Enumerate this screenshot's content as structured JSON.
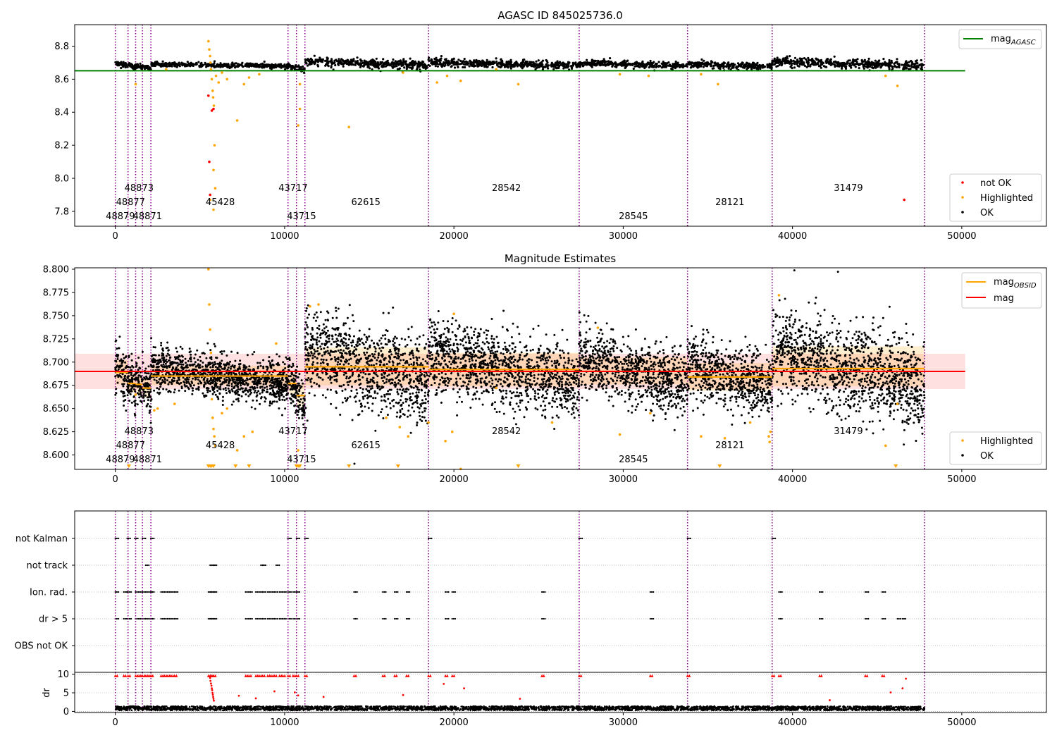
{
  "chart_data": [
    {
      "type": "scatter",
      "title": "AGASC ID 845025736.0",
      "xlim": [
        -2400,
        55000
      ],
      "ylim": [
        7.71,
        8.93
      ],
      "x_ticks": [
        0,
        10000,
        20000,
        30000,
        40000,
        50000
      ],
      "y_ticks": [
        7.8,
        8.0,
        8.2,
        8.4,
        8.6,
        8.8
      ],
      "x_tick_labels": [
        "0",
        "10000",
        "20000",
        "30000",
        "40000",
        "50000"
      ],
      "y_tick_labels": [
        "7.8",
        "8.0",
        "8.2",
        "8.4",
        "8.6",
        "8.8"
      ],
      "reference_line": {
        "name": "mag_AGASC",
        "label_main": "mag",
        "label_sub": "AGASC",
        "value": 8.651,
        "color": "#008000",
        "x_range": [
          -2400,
          50200
        ]
      },
      "legend_lines": [
        {
          "label_main": "mag",
          "label_sub": "AGASC",
          "color": "#008000"
        }
      ],
      "legend_points": [
        {
          "label": "not OK",
          "color": "#ff0000"
        },
        {
          "label": "Highlighted",
          "color": "#ffa500"
        },
        {
          "label": "OK",
          "color": "#000000"
        }
      ],
      "outliers": {
        "red": [
          [
            5500,
            8.5
          ],
          [
            5550,
            8.1
          ],
          [
            5600,
            7.9
          ],
          [
            5700,
            8.41
          ],
          [
            5800,
            8.42
          ],
          [
            46600,
            7.87
          ]
        ],
        "orange": [
          [
            5500,
            8.83
          ],
          [
            5550,
            8.78
          ],
          [
            5600,
            8.74
          ],
          [
            5620,
            8.7
          ],
          [
            5650,
            8.66
          ],
          [
            5700,
            8.6
          ],
          [
            5750,
            8.53
          ],
          [
            5780,
            8.49
          ],
          [
            5820,
            8.44
          ],
          [
            5860,
            8.2
          ],
          [
            5800,
            8.05
          ],
          [
            5900,
            7.94
          ],
          [
            5600,
            7.87
          ],
          [
            5800,
            7.81
          ],
          [
            5950,
            8.62
          ],
          [
            6100,
            8.58
          ],
          [
            6300,
            8.64
          ],
          [
            6600,
            8.6
          ],
          [
            7200,
            8.35
          ],
          [
            7600,
            8.57
          ],
          [
            7900,
            8.61
          ],
          [
            10800,
            8.32
          ],
          [
            10900,
            8.42
          ],
          [
            10900,
            8.57
          ],
          [
            13800,
            8.31
          ],
          [
            17000,
            8.64
          ],
          [
            19000,
            8.58
          ],
          [
            19600,
            8.62
          ],
          [
            20400,
            8.59
          ],
          [
            23800,
            8.57
          ],
          [
            22500,
            8.66
          ],
          [
            29800,
            8.63
          ],
          [
            31500,
            8.62
          ],
          [
            34600,
            8.63
          ],
          [
            35600,
            8.57
          ],
          [
            45500,
            8.62
          ],
          [
            46200,
            8.56
          ],
          [
            1200,
            8.57
          ],
          [
            3000,
            8.66
          ],
          [
            8500,
            8.63
          ]
        ]
      }
    },
    {
      "type": "scatter",
      "title": "Magnitude Estimates",
      "xlim": [
        -2400,
        55000
      ],
      "ylim": [
        8.5845,
        8.8015
      ],
      "x_ticks": [
        0,
        10000,
        20000,
        30000,
        40000,
        50000
      ],
      "y_ticks": [
        8.6,
        8.625,
        8.65,
        8.675,
        8.7,
        8.725,
        8.75,
        8.775,
        8.8
      ],
      "x_tick_labels": [
        "0",
        "10000",
        "20000",
        "30000",
        "40000",
        "50000"
      ],
      "y_tick_labels": [
        "8.600",
        "8.625",
        "8.650",
        "8.675",
        "8.700",
        "8.725",
        "8.750",
        "8.775",
        "8.800"
      ],
      "mag": {
        "name": "mag",
        "value": 8.69,
        "band": [
          8.671,
          8.709
        ],
        "x_range": [
          -2400,
          50200
        ],
        "color": "#ff0000"
      },
      "mag_obsid_segments": [
        {
          "x0": 0,
          "x1": 750,
          "y": 8.689,
          "lo": 8.676,
          "hi": 8.702
        },
        {
          "x0": 750,
          "x1": 1200,
          "y": 8.677,
          "lo": 8.667,
          "hi": 8.688
        },
        {
          "x0": 1200,
          "x1": 1600,
          "y": 8.676,
          "lo": 8.666,
          "hi": 8.686
        },
        {
          "x0": 1600,
          "x1": 2100,
          "y": 8.672,
          "lo": 8.662,
          "hi": 8.682
        },
        {
          "x0": 2100,
          "x1": 10200,
          "y": 8.685,
          "lo": 8.675,
          "hi": 8.696
        },
        {
          "x0": 10200,
          "x1": 10700,
          "y": 8.677,
          "lo": 8.666,
          "hi": 8.688
        },
        {
          "x0": 10700,
          "x1": 11200,
          "y": 8.664,
          "lo": 8.652,
          "hi": 8.676
        },
        {
          "x0": 11200,
          "x1": 18500,
          "y": 8.695,
          "lo": 8.675,
          "hi": 8.716
        },
        {
          "x0": 18500,
          "x1": 27400,
          "y": 8.692,
          "lo": 8.674,
          "hi": 8.71
        },
        {
          "x0": 27400,
          "x1": 33800,
          "y": 8.69,
          "lo": 8.676,
          "hi": 8.705
        },
        {
          "x0": 33800,
          "x1": 38800,
          "y": 8.684,
          "lo": 8.669,
          "hi": 8.699
        },
        {
          "x0": 38800,
          "x1": 47800,
          "y": 8.693,
          "lo": 8.674,
          "hi": 8.717
        }
      ],
      "legend_lines": [
        {
          "label_main": "mag",
          "label_sub": "OBSID",
          "color": "#ffa500"
        },
        {
          "label_main": "mag",
          "label_sub": "",
          "color": "#ff0000"
        }
      ],
      "legend_points": [
        {
          "label": "Highlighted",
          "color": "#ffa500"
        },
        {
          "label": "OK",
          "color": "#000000"
        }
      ],
      "outliers": {
        "orange": [
          [
            5500,
            8.8
          ],
          [
            5550,
            8.762
          ],
          [
            5600,
            8.735
          ],
          [
            5650,
            8.71
          ],
          [
            5700,
            8.66
          ],
          [
            5750,
            8.64
          ],
          [
            5800,
            8.628
          ],
          [
            5850,
            8.62
          ],
          [
            5900,
            8.61
          ],
          [
            6300,
            8.645
          ],
          [
            6600,
            8.65
          ],
          [
            7200,
            8.605
          ],
          [
            7600,
            8.62
          ],
          [
            8100,
            8.625
          ],
          [
            9500,
            8.72
          ],
          [
            10800,
            8.605
          ],
          [
            11500,
            8.76
          ],
          [
            12000,
            8.762
          ],
          [
            16000,
            8.64
          ],
          [
            16800,
            8.63
          ],
          [
            17300,
            8.62
          ],
          [
            18500,
            8.635
          ],
          [
            19500,
            8.615
          ],
          [
            19900,
            8.625
          ],
          [
            20000,
            8.752
          ],
          [
            20400,
            8.585
          ],
          [
            22500,
            8.672
          ],
          [
            25800,
            8.635
          ],
          [
            28500,
            8.737
          ],
          [
            29800,
            8.622
          ],
          [
            31600,
            8.645
          ],
          [
            34600,
            8.62
          ],
          [
            36000,
            8.618
          ],
          [
            37500,
            8.635
          ],
          [
            38600,
            8.62
          ],
          [
            38650,
            8.614
          ],
          [
            38700,
            8.625
          ],
          [
            39200,
            8.772
          ],
          [
            45500,
            8.61
          ],
          [
            46200,
            8.655
          ],
          [
            1200,
            8.665
          ],
          [
            2300,
            8.648
          ],
          [
            2500,
            8.65
          ],
          [
            3500,
            8.655
          ]
        ],
        "down_markers": [
          [
            800,
            0
          ],
          [
            5500,
            0
          ],
          [
            5600,
            0
          ],
          [
            5700,
            0
          ],
          [
            5800,
            0
          ],
          [
            7100,
            0
          ],
          [
            7900,
            0
          ],
          [
            10700,
            0
          ],
          [
            10800,
            0
          ],
          [
            10900,
            0
          ],
          [
            13800,
            0
          ],
          [
            16700,
            0
          ],
          [
            23800,
            0
          ],
          [
            35700,
            0
          ],
          [
            46100,
            0
          ]
        ]
      }
    },
    {
      "type": "scatter",
      "title": "",
      "category_axis": {
        "labels": [
          "not Kalman",
          "not track",
          "Ion. rad.",
          "dr > 5",
          "OBS not OK"
        ]
      },
      "xlim": [
        -2400,
        55000
      ],
      "flags": {
        "not Kalman": [
          0,
          700,
          1150,
          1600,
          2100,
          10200,
          10700,
          11200,
          18500,
          27400,
          33800,
          38800
        ],
        "not track": [
          1800,
          5600,
          5700,
          5800,
          8600,
          8700,
          9500
        ],
        "Ion. rad.": [
          0,
          500,
          750,
          1200,
          1400,
          1600,
          1800,
          2000,
          2100,
          2700,
          2900,
          3100,
          3300,
          3500,
          5500,
          5600,
          5700,
          5800,
          7700,
          7900,
          8300,
          8500,
          8700,
          9000,
          9200,
          9400,
          9700,
          9900,
          10200,
          10500,
          10700,
          14100,
          15800,
          16500,
          17200,
          19500,
          19900,
          25200,
          31600,
          39200,
          41600,
          44300,
          45300
        ],
        "dr > 5": [
          0,
          500,
          750,
          1200,
          1400,
          1600,
          1800,
          2000,
          2100,
          2700,
          2900,
          3100,
          3300,
          3500,
          5500,
          5600,
          5700,
          5800,
          7700,
          7900,
          8300,
          8500,
          8700,
          9000,
          9200,
          9400,
          9700,
          9900,
          10200,
          10500,
          10700,
          14100,
          15800,
          16500,
          17200,
          19500,
          19900,
          25200,
          31600,
          39200,
          41600,
          44300,
          45300,
          46200,
          46500
        ],
        "OBS not OK": []
      }
    },
    {
      "type": "scatter",
      "title": "",
      "ylabel": "dr",
      "xlim": [
        -2400,
        55000
      ],
      "ylim": [
        -0.3,
        10.5
      ],
      "x_ticks": [
        0,
        10000,
        20000,
        30000,
        40000,
        50000
      ],
      "y_ticks": [
        0,
        5,
        10
      ],
      "x_tick_labels": [
        "0",
        "10000",
        "20000",
        "30000",
        "40000",
        "50000"
      ],
      "y_tick_labels": [
        "0",
        "5",
        "10"
      ],
      "baseline": {
        "y_low": 0.3,
        "y_high": 1.4,
        "x_range": [
          0,
          47800
        ]
      },
      "capped_at_10_x": [
        0,
        500,
        750,
        1200,
        1400,
        1600,
        1800,
        2000,
        2100,
        2700,
        2900,
        3100,
        3300,
        3500,
        5500,
        5600,
        5700,
        5800,
        7700,
        7900,
        8300,
        8500,
        8700,
        9000,
        9200,
        9400,
        9700,
        9900,
        10200,
        10500,
        10700,
        11200,
        14100,
        15800,
        16500,
        17200,
        18500,
        19500,
        19900,
        25200,
        27400,
        31600,
        33800,
        38800,
        39200,
        41600,
        44300,
        45300
      ],
      "red_points": [
        [
          5600,
          9.0
        ],
        [
          5620,
          8.2
        ],
        [
          5650,
          7.5
        ],
        [
          5680,
          6.9
        ],
        [
          5700,
          6.2
        ],
        [
          5720,
          5.7
        ],
        [
          5740,
          5.0
        ],
        [
          5760,
          4.5
        ],
        [
          5780,
          3.9
        ],
        [
          5800,
          3.4
        ],
        [
          5820,
          2.9
        ],
        [
          7300,
          4.2
        ],
        [
          8300,
          3.5
        ],
        [
          9400,
          5.4
        ],
        [
          10600,
          5.1
        ],
        [
          10800,
          4.3
        ],
        [
          12300,
          3.9
        ],
        [
          17000,
          4.4
        ],
        [
          19400,
          7.4
        ],
        [
          20600,
          6.2
        ],
        [
          23900,
          3.4
        ],
        [
          42200,
          3.0
        ],
        [
          45800,
          5.1
        ],
        [
          46500,
          6.2
        ],
        [
          46700,
          8.8
        ]
      ]
    }
  ],
  "obsid_boundaries": [
    0,
    750,
    1200,
    1600,
    2100,
    10200,
    10700,
    11200,
    18500,
    27400,
    33800,
    38800,
    47800
  ],
  "obsid_labels_top": [
    {
      "text": "48873",
      "x": 1400,
      "row": 0
    },
    {
      "text": "43717",
      "x": 10500,
      "row": 0
    },
    {
      "text": "28542",
      "x": 23100,
      "row": 0
    },
    {
      "text": "31479",
      "x": 43300,
      "row": 0
    },
    {
      "text": "48877",
      "x": 900,
      "row": 1
    },
    {
      "text": "45428",
      "x": 6200,
      "row": 1
    },
    {
      "text": "62615",
      "x": 14800,
      "row": 1
    },
    {
      "text": "28121",
      "x": 36300,
      "row": 1
    },
    {
      "text": "48879",
      "x": 300,
      "row": 2
    },
    {
      "text": "48871",
      "x": 1900,
      "row": 2
    },
    {
      "text": "43715",
      "x": 11000,
      "row": 2
    },
    {
      "text": "28545",
      "x": 30600,
      "row": 2
    }
  ],
  "obsid_labels_mid": [
    {
      "text": "48873",
      "x": 1400,
      "row": 0
    },
    {
      "text": "43717",
      "x": 10500,
      "row": 0
    },
    {
      "text": "28542",
      "x": 23100,
      "row": 0
    },
    {
      "text": "31479",
      "x": 43300,
      "row": 0
    },
    {
      "text": "48877",
      "x": 900,
      "row": 1
    },
    {
      "text": "45428",
      "x": 6200,
      "row": 1
    },
    {
      "text": "62615",
      "x": 14800,
      "row": 1
    },
    {
      "text": "28121",
      "x": 36300,
      "row": 1
    },
    {
      "text": "48879",
      "x": 300,
      "row": 2
    },
    {
      "text": "48871",
      "x": 1900,
      "row": 2
    },
    {
      "text": "43715",
      "x": 11000,
      "row": 2
    },
    {
      "text": "28545",
      "x": 30600,
      "row": 2
    }
  ],
  "colors": {
    "ok": "#000000",
    "highlighted": "#ffa500",
    "not_ok": "#ff0000",
    "boundary": "#800080",
    "agasc": "#008000",
    "band": "#ffcccc",
    "grid": "#b0b0b0"
  },
  "seed": 17
}
